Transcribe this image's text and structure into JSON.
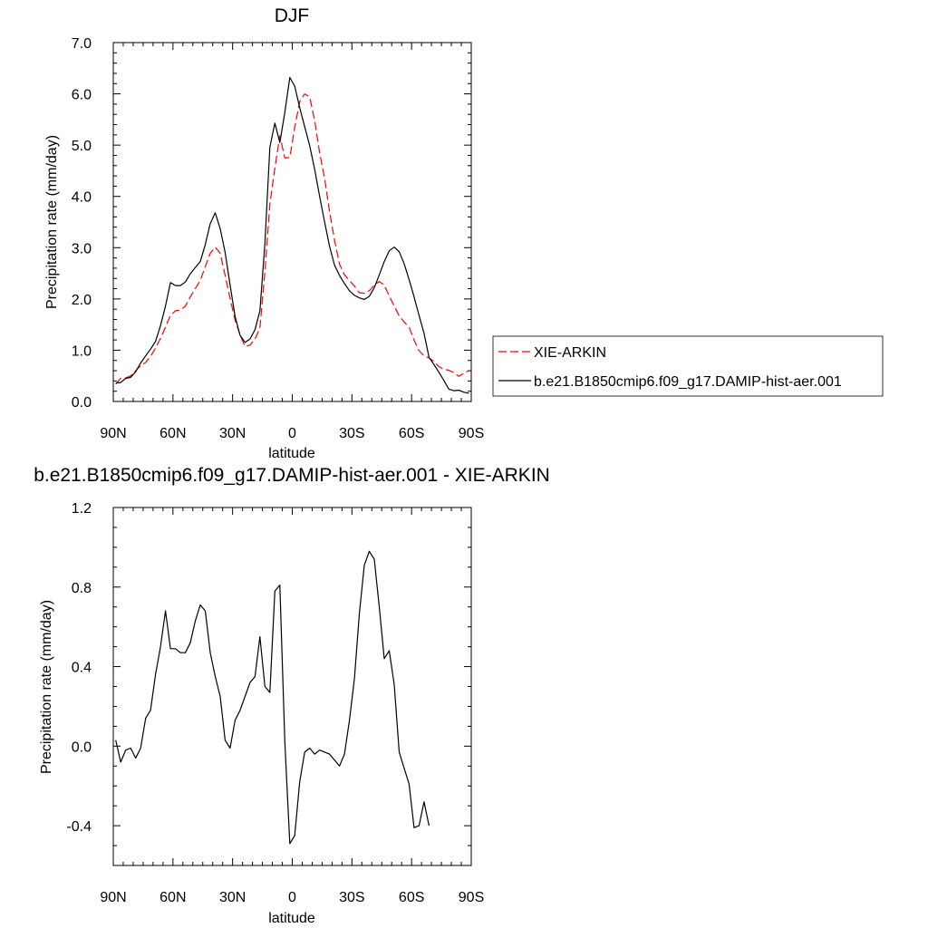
{
  "chart_data": [
    {
      "type": "line",
      "title": "DJF",
      "xlabel": "latitude",
      "ylabel": "Precipitation rate (mm/day)",
      "xlim": [
        90,
        -90
      ],
      "ylim": [
        0,
        7
      ],
      "x_ticks": [
        90,
        60,
        30,
        0,
        -30,
        -60,
        -90
      ],
      "x_tick_labels": [
        "90N",
        "60N",
        "30N",
        "0",
        "30S",
        "60S",
        "90S"
      ],
      "y_ticks": [
        0,
        1,
        2,
        3,
        4,
        5,
        6,
        7
      ],
      "y_tick_labels": [
        "0.0",
        "1.0",
        "2.0",
        "3.0",
        "4.0",
        "5.0",
        "6.0",
        "7.0"
      ],
      "legend": {
        "placement": "right"
      },
      "x": [
        88.75,
        86.25,
        83.75,
        81.25,
        78.75,
        76.25,
        73.75,
        71.25,
        68.75,
        66.25,
        63.75,
        61.25,
        58.75,
        56.25,
        53.75,
        51.25,
        48.75,
        46.25,
        43.75,
        41.25,
        38.75,
        36.25,
        33.75,
        31.25,
        28.75,
        26.25,
        23.75,
        21.25,
        18.75,
        16.25,
        13.75,
        11.25,
        8.75,
        6.25,
        3.75,
        1.25,
        -1.25,
        -3.75,
        -6.25,
        -8.75,
        -11.25,
        -13.75,
        -16.25,
        -18.75,
        -21.25,
        -23.75,
        -26.25,
        -28.75,
        -31.25,
        -33.75,
        -36.25,
        -38.75,
        -41.25,
        -43.75,
        -46.25,
        -48.75,
        -51.25,
        -53.75,
        -56.25,
        -58.75,
        -61.25,
        -63.75,
        -66.25,
        -68.75,
        -71.25,
        -73.75,
        -76.25,
        -78.75,
        -81.25,
        -83.75,
        -86.25,
        -88.75
      ],
      "series": [
        {
          "name": "XIE-ARKIN",
          "color": "#ff0000",
          "dash": "dashed",
          "values": [
            0.34,
            0.45,
            0.46,
            0.5,
            0.6,
            0.7,
            0.76,
            0.88,
            1.04,
            1.23,
            1.45,
            1.68,
            1.77,
            1.78,
            1.86,
            2.04,
            2.2,
            2.36,
            2.63,
            2.89,
            3.01,
            2.89,
            2.46,
            2.01,
            1.59,
            1.3,
            1.07,
            1.1,
            1.22,
            1.43,
            2.53,
            3.85,
            4.55,
            5.18,
            4.75,
            4.76,
            5.34,
            5.85,
            6.0,
            5.94,
            5.48,
            4.85,
            4.35,
            3.71,
            3.15,
            2.68,
            2.47,
            2.36,
            2.25,
            2.12,
            2.11,
            2.16,
            2.27,
            2.34,
            2.27,
            2.06,
            1.86,
            1.67,
            1.55,
            1.45,
            1.2,
            0.99,
            0.89,
            0.85,
            0.78,
            0.68,
            0.63,
            0.61,
            0.56,
            0.49,
            0.55,
            0.6
          ]
        },
        {
          "name": "b.e21.B1850cmip6.f09_g17.DAMIP-hist-aer.001",
          "color": "#000000",
          "dash": "solid",
          "values": [
            0.36,
            0.37,
            0.45,
            0.47,
            0.58,
            0.75,
            0.89,
            1.02,
            1.17,
            1.48,
            1.86,
            2.32,
            2.26,
            2.26,
            2.33,
            2.49,
            2.61,
            2.73,
            3.06,
            3.47,
            3.68,
            3.37,
            2.91,
            2.27,
            1.66,
            1.29,
            1.15,
            1.22,
            1.4,
            1.77,
            3.08,
            4.96,
            5.43,
            5.05,
            5.64,
            6.32,
            6.15,
            5.73,
            5.36,
            4.99,
            4.53,
            4.0,
            3.5,
            3.03,
            2.66,
            2.46,
            2.3,
            2.16,
            2.07,
            2.02,
            1.99,
            2.05,
            2.22,
            2.47,
            2.73,
            2.94,
            3.01,
            2.92,
            2.69,
            2.38,
            2.04,
            1.68,
            1.33,
            0.86,
            0.72,
            0.57,
            0.41,
            0.24,
            0.21,
            0.22,
            0.18,
            0.16
          ]
        }
      ]
    },
    {
      "type": "line",
      "title": "b.e21.B1850cmip6.f09_g17.DAMIP-hist-aer.001 - XIE-ARKIN",
      "xlabel": "latitude",
      "ylabel": "Precipitation rate (mm/day)",
      "xlim": [
        90,
        -90
      ],
      "ylim": [
        -0.6,
        1.2
      ],
      "x_ticks": [
        90,
        60,
        30,
        0,
        -30,
        -60,
        -90
      ],
      "x_tick_labels": [
        "90N",
        "60N",
        "30N",
        "0",
        "30S",
        "60S",
        "90S"
      ],
      "y_ticks": [
        -0.4,
        0.0,
        0.4,
        0.8,
        1.2
      ],
      "y_tick_labels": [
        "-0.4",
        "0.0",
        "0.4",
        "0.8",
        "1.2"
      ],
      "x": [
        88.75,
        86.25,
        83.75,
        81.25,
        78.75,
        76.25,
        73.75,
        71.25,
        68.75,
        66.25,
        63.75,
        61.25,
        58.75,
        56.25,
        53.75,
        51.25,
        48.75,
        46.25,
        43.75,
        41.25,
        38.75,
        36.25,
        33.75,
        31.25,
        28.75,
        26.25,
        23.75,
        21.25,
        18.75,
        16.25,
        13.75,
        11.25,
        8.75,
        6.25,
        3.75,
        1.25,
        -1.25,
        -3.75,
        -6.25,
        -8.75,
        -11.25,
        -13.75,
        -16.25,
        -18.75,
        -21.25,
        -23.75,
        -26.25,
        -28.75,
        -31.25,
        -33.75,
        -36.25,
        -38.75,
        -41.25,
        -43.75,
        -46.25,
        -48.75,
        -51.25,
        -53.75,
        -56.25,
        -58.75,
        -61.25,
        -63.75,
        -66.25,
        -68.75,
        -71.25,
        -73.75,
        -76.25,
        -78.75,
        -81.25,
        -83.75,
        -86.25,
        -88.75
      ],
      "series": [
        {
          "name": "b.e21.B1850cmip6.f09_g17.DAMIP-hist-aer.001 - XIE-ARKIN",
          "color": "#000000",
          "dash": "solid",
          "values": [
            0.03,
            -0.08,
            -0.02,
            -0.01,
            -0.06,
            -0.01,
            0.14,
            0.18,
            0.36,
            0.5,
            0.68,
            0.49,
            0.49,
            0.47,
            0.47,
            0.52,
            0.63,
            0.71,
            0.68,
            0.47,
            0.35,
            0.25,
            0.03,
            -0.01,
            0.13,
            0.18,
            0.25,
            0.32,
            0.35,
            0.55,
            0.3,
            0.27,
            0.78,
            0.81,
            0.02,
            -0.49,
            -0.45,
            -0.18,
            -0.03,
            -0.01,
            -0.04,
            -0.02,
            -0.03,
            -0.04,
            -0.07,
            -0.1,
            -0.04,
            0.13,
            0.34,
            0.67,
            0.91,
            0.98,
            0.94,
            0.7,
            0.44,
            0.48,
            0.31,
            -0.03,
            -0.11,
            -0.19,
            -0.41,
            -0.4,
            -0.28,
            -0.4,
            null,
            null,
            null,
            null,
            null,
            null,
            null,
            null
          ]
        }
      ]
    }
  ]
}
